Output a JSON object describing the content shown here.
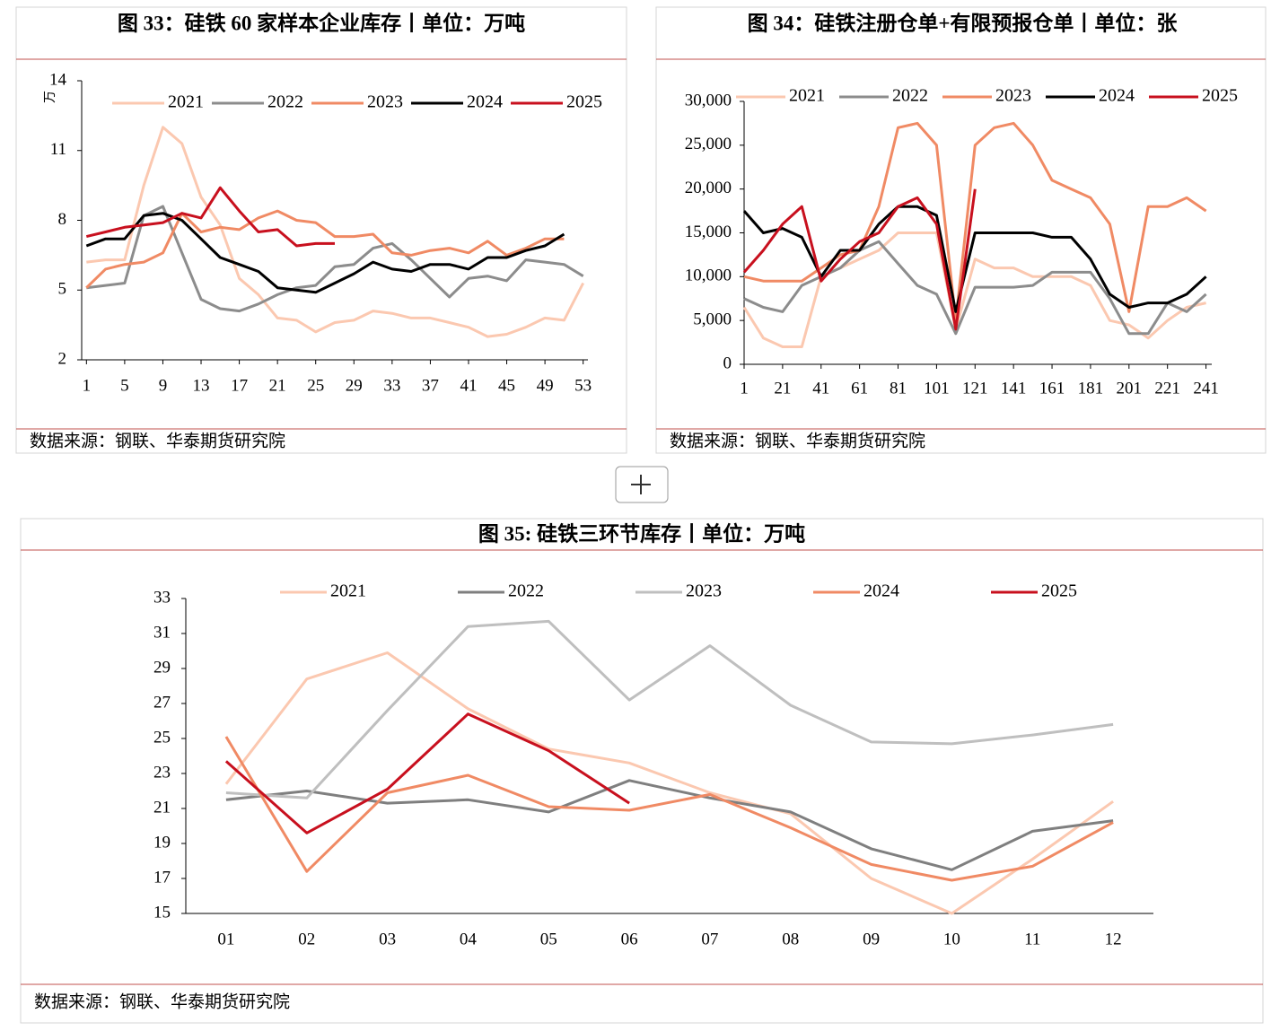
{
  "chart_data": [
    {
      "type": "line",
      "title": "图 33：硅铁 60 家样本企业库存丨单位：万吨",
      "source": "数据来源：钢联、华泰期货研究院",
      "ylabel": "万",
      "x": [
        1,
        3,
        5,
        7,
        9,
        11,
        13,
        15,
        17,
        19,
        21,
        23,
        25,
        27,
        29,
        31,
        33,
        35,
        37,
        39,
        41,
        43,
        45,
        47,
        49,
        51,
        53
      ],
      "xlim": [
        0.5,
        53.5
      ],
      "xticks": [
        1,
        5,
        9,
        13,
        17,
        21,
        25,
        29,
        33,
        37,
        41,
        45,
        49,
        53
      ],
      "ylim": [
        2,
        14
      ],
      "yticks": [
        2,
        5,
        8,
        11,
        14
      ],
      "series": [
        {
          "name": "2021",
          "color": "#fbc8b0",
          "values": [
            6.2,
            6.3,
            6.3,
            9.5,
            12.0,
            11.3,
            9.0,
            7.8,
            5.5,
            4.8,
            3.8,
            3.7,
            3.2,
            3.6,
            3.7,
            4.1,
            4.0,
            3.8,
            3.8,
            3.6,
            3.4,
            3.0,
            3.1,
            3.4,
            3.8,
            3.7,
            5.3
          ]
        },
        {
          "name": "2022",
          "color": "#8c8c8c",
          "values": [
            5.1,
            5.2,
            5.3,
            8.2,
            8.6,
            6.6,
            4.6,
            4.2,
            4.1,
            4.4,
            4.8,
            5.1,
            5.2,
            6.0,
            6.1,
            6.8,
            7.0,
            6.3,
            5.5,
            4.7,
            5.5,
            5.6,
            5.4,
            6.3,
            6.2,
            6.1,
            5.6
          ]
        },
        {
          "name": "2023",
          "color": "#f08a64",
          "values": [
            5.1,
            5.9,
            6.1,
            6.2,
            6.6,
            8.3,
            7.5,
            7.7,
            7.6,
            8.1,
            8.4,
            8.0,
            7.9,
            7.3,
            7.3,
            7.4,
            6.6,
            6.5,
            6.7,
            6.8,
            6.6,
            7.1,
            6.5,
            6.8,
            7.2,
            7.2,
            null
          ]
        },
        {
          "name": "2024",
          "color": "#000000",
          "values": [
            6.9,
            7.2,
            7.2,
            8.2,
            8.3,
            8.0,
            7.2,
            6.4,
            6.1,
            5.8,
            5.1,
            5.0,
            4.9,
            5.3,
            5.7,
            6.2,
            5.9,
            5.8,
            6.1,
            6.1,
            5.9,
            6.4,
            6.4,
            6.7,
            6.9,
            7.4,
            null
          ]
        },
        {
          "name": "2025",
          "color": "#c8101e",
          "values": [
            7.3,
            7.5,
            7.7,
            7.8,
            7.9,
            8.3,
            8.1,
            9.4,
            8.4,
            7.5,
            7.6,
            6.9,
            7.0,
            7.0,
            null,
            null,
            null,
            null,
            null,
            null,
            null,
            null,
            null,
            null,
            null,
            null,
            null
          ]
        }
      ]
    },
    {
      "type": "line",
      "title": "图 34：硅铁注册仓单+有限预报仓单丨单位：张",
      "source": "数据来源：钢联、华泰期货研究院",
      "x": [
        1,
        11,
        21,
        31,
        41,
        51,
        61,
        71,
        81,
        91,
        101,
        111,
        121,
        131,
        141,
        151,
        161,
        171,
        181,
        191,
        201,
        211,
        221,
        231,
        241
      ],
      "xlim": [
        1,
        244
      ],
      "xticks": [
        1,
        21,
        41,
        61,
        81,
        101,
        121,
        141,
        161,
        181,
        201,
        221,
        241
      ],
      "ylim": [
        0,
        30000
      ],
      "yticks": [
        0,
        {
          "value": 5000,
          "label": "5,000"
        },
        {
          "value": 10000,
          "label": "10,000"
        },
        {
          "value": 15000,
          "label": "15,000"
        },
        {
          "value": 20000,
          "label": "20,000"
        },
        {
          "value": 25000,
          "label": "25,000"
        },
        {
          "value": 30000,
          "label": "30,000"
        }
      ],
      "series": [
        {
          "name": "2021",
          "color": "#fbc8b0",
          "values": [
            6500,
            3000,
            2000,
            2000,
            10000,
            11000,
            12000,
            13000,
            15000,
            15000,
            15000,
            4000,
            12000,
            11000,
            11000,
            10000,
            10000,
            10000,
            9000,
            5000,
            4500,
            3000,
            5000,
            6500,
            7000
          ]
        },
        {
          "name": "2022",
          "color": "#8c8c8c",
          "values": [
            7500,
            6500,
            6000,
            9000,
            10000,
            11000,
            13000,
            14000,
            11500,
            9000,
            8000,
            3500,
            8800,
            8800,
            8800,
            9000,
            10500,
            10500,
            10500,
            7500,
            3500,
            3500,
            7000,
            6000,
            8000
          ]
        },
        {
          "name": "2023",
          "color": "#f08a64",
          "values": [
            10000,
            9500,
            9500,
            9500,
            11000,
            12500,
            13000,
            18000,
            27000,
            27500,
            25000,
            5000,
            25000,
            27000,
            27500,
            25000,
            21000,
            20000,
            19000,
            16000,
            6000,
            18000,
            18000,
            19000,
            17500
          ]
        },
        {
          "name": "2024",
          "color": "#000000",
          "values": [
            17500,
            15000,
            15500,
            14500,
            10000,
            13000,
            13000,
            16000,
            18000,
            18000,
            17000,
            6000,
            15000,
            15000,
            15000,
            15000,
            14500,
            14500,
            12000,
            8000,
            6500,
            7000,
            7000,
            8000,
            10000
          ]
        },
        {
          "name": "2025",
          "color": "#c8101e",
          "values": [
            10500,
            13000,
            16000,
            18000,
            9500,
            12000,
            14000,
            15000,
            18000,
            19000,
            16000,
            4000,
            20000,
            null,
            null,
            null,
            null,
            null,
            null,
            null,
            null,
            null,
            null,
            null,
            null
          ]
        }
      ]
    },
    {
      "type": "line",
      "title": "图 35: 硅铁三环节库存丨单位：万吨",
      "source": "数据来源：钢联、华泰期货研究院",
      "categories": [
        "01",
        "02",
        "03",
        "04",
        "05",
        "06",
        "07",
        "08",
        "09",
        "10",
        "11",
        "12"
      ],
      "ylim": [
        15,
        33
      ],
      "yticks": [
        15,
        17,
        19,
        21,
        23,
        25,
        27,
        29,
        31,
        33
      ],
      "series": [
        {
          "name": "2021",
          "color": "#fbc8b0",
          "values": [
            22.4,
            28.4,
            29.9,
            26.7,
            24.4,
            23.6,
            21.9,
            20.7,
            17.0,
            15.0,
            18.1,
            21.4
          ]
        },
        {
          "name": "2022",
          "color": "#7f7f7f",
          "values": [
            21.5,
            22.0,
            21.3,
            21.5,
            20.8,
            22.6,
            21.6,
            20.8,
            18.7,
            17.5,
            19.7,
            20.3
          ]
        },
        {
          "name": "2023",
          "color": "#bfbfbf",
          "values": [
            21.9,
            21.6,
            26.6,
            31.4,
            31.7,
            27.2,
            30.3,
            26.9,
            24.8,
            24.7,
            25.2,
            25.8
          ]
        },
        {
          "name": "2024",
          "color": "#f08a64",
          "values": [
            25.1,
            17.4,
            21.9,
            22.9,
            21.1,
            20.9,
            21.8,
            19.9,
            17.8,
            16.9,
            17.7,
            20.2
          ]
        },
        {
          "name": "2025",
          "color": "#c8101e",
          "values": [
            23.7,
            19.6,
            22.1,
            26.4,
            24.3,
            21.3,
            null,
            null,
            null,
            null,
            null,
            null
          ]
        }
      ]
    }
  ]
}
